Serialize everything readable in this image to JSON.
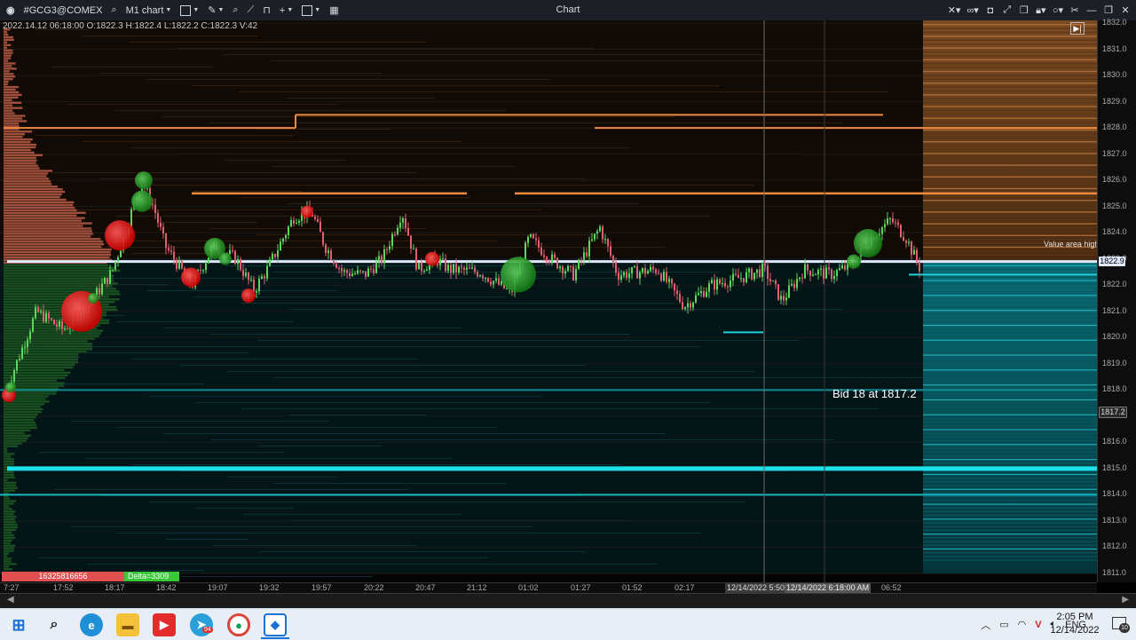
{
  "toolbar": {
    "symbol": "#GCG3@COMEX",
    "timeframe": "M1 chart",
    "window_title": "Chart"
  },
  "ohlc_readout": "2022.14.12 06:18:00 O:1822.3 H:1822.4 L:1822.2 C:1822.3 V:42",
  "price_axis": {
    "labels": [
      "1832.0",
      "1831.0",
      "1830.0",
      "1829.0",
      "1828.0",
      "1827.0",
      "1826.0",
      "1825.0",
      "1824.0",
      "1823.0",
      "1822.0",
      "1821.0",
      "1820.0",
      "1819.0",
      "1818.0",
      "1817.0",
      "1816.0",
      "1815.0",
      "1814.0",
      "1813.0",
      "1812.0",
      "1811.0"
    ],
    "current_price_badge": "1822.9",
    "marker_price_badge": "1817.2"
  },
  "time_axis": {
    "labels": [
      "7:27",
      "17:52",
      "18:17",
      "18:42",
      "19:07",
      "19:32",
      "19:57",
      "20:22",
      "20:47",
      "21:12",
      "01:02",
      "01:27",
      "01:52",
      "02:17",
      "06:52"
    ],
    "cursor_label_1": "12/14/2022 5:50:0",
    "cursor_label_2": "12/14/2022 6:18:00 AM"
  },
  "annotations": {
    "value_area_high": "Value area high",
    "bid_label": "Bid 18 at 1817.2"
  },
  "footer": {
    "volume_readout": "16325816656",
    "delta_readout": "Delta=3309"
  },
  "chart_data": {
    "type": "candlestick",
    "y_axis": {
      "min": 1811.0,
      "max": 1832.0,
      "grid_step": 1.0
    },
    "value_area_high": 1822.9,
    "bid_level": 1817.2,
    "horizontal_levels": [
      {
        "price": 1828.0,
        "color": "#f08a3e"
      },
      {
        "price": 1828.5,
        "color": "#f08a3e"
      },
      {
        "price": 1825.7,
        "color": "#f08a3e"
      },
      {
        "price": 1822.9,
        "color": "#dfe8ff"
      },
      {
        "price": 1815.0,
        "color": "#1ee0e8"
      },
      {
        "price": 1814.0,
        "color": "#18b8c0"
      }
    ],
    "bubbles_sell": [
      1826.0,
      1822.0,
      1821.2,
      1822.0,
      1824.0,
      1823.0,
      1818.0
    ],
    "bubbles_buy": [
      1825.5,
      1823.5,
      1822.5,
      1823.5,
      1823.0,
      1818.5
    ]
  },
  "taskbar": {
    "time": "2:05 PM",
    "date": "12/14/2022",
    "language": "ENG",
    "notification_count": "10",
    "telegram_badge": "94"
  }
}
